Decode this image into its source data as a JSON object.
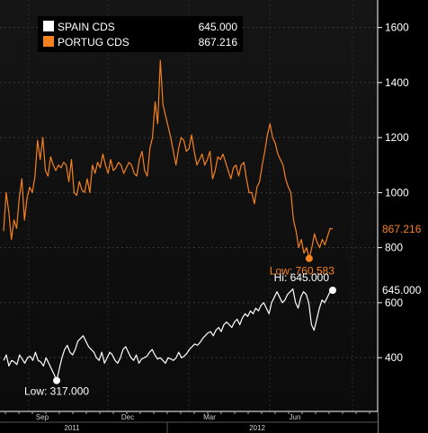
{
  "chart_data": {
    "type": "line",
    "title": "",
    "xlabel": "",
    "ylabel": "",
    "ylim": [
      250,
      1650
    ],
    "x_axis": {
      "months": [
        "Sep",
        "Dec",
        "Mar",
        "Jun"
      ],
      "years": [
        "2011",
        "2012"
      ]
    },
    "y_ticks": [
      400,
      600,
      800,
      1000,
      1200,
      1400,
      1600
    ],
    "grid": true,
    "legend": {
      "placement": "top-left",
      "entries": [
        {
          "name": "SPAIN CDS",
          "value": "645.000",
          "color": "#ffffff"
        },
        {
          "name": "PORTUG CDS",
          "value": "867.216",
          "color": "#f58220"
        }
      ]
    },
    "series": [
      {
        "name": "PORTUG CDS",
        "color": "#f58220",
        "last_value_label": "867.216",
        "values": [
          860,
          1000,
          930,
          830,
          900,
          870,
          980,
          1050,
          900,
          980,
          1020,
          1000,
          1060,
          1190,
          1120,
          1200,
          1080,
          1060,
          1130,
          1100,
          1080,
          1100,
          1090,
          1110,
          1100,
          1040,
          1120,
          1000,
          990,
          1040,
          1010,
          1000,
          1050,
          1000,
          1100,
          1070,
          1110,
          1090,
          1140,
          1100,
          1070,
          1120,
          1080,
          1090,
          1110,
          1100,
          1070,
          1090,
          1110,
          1100,
          1070,
          1060,
          1120,
          1150,
          1080,
          1060,
          1160,
          1200,
          1330,
          1250,
          1480,
          1320,
          1280,
          1240,
          1200,
          1150,
          1100,
          1160,
          1200,
          1190,
          1150,
          1160,
          1210,
          1150,
          1100,
          1120,
          1140,
          1100,
          1120,
          1150,
          1050,
          1080,
          1130,
          1120,
          1140,
          1110,
          1080,
          1050,
          1090,
          1100,
          1060,
          1100,
          1110,
          1050,
          1000,
          1000,
          960,
          1020,
          1040,
          1100,
          1150,
          1210,
          1250,
          1200,
          1180,
          1140,
          1120,
          1100,
          1050,
          1020,
          1000,
          900,
          860,
          800,
          830,
          780,
          800,
          761,
          800,
          850,
          820,
          800,
          830,
          810,
          840,
          870,
          867
        ],
        "annotations": [
          {
            "label": "Low: 760.583",
            "value": 760.583,
            "index": 117
          }
        ]
      },
      {
        "name": "SPAIN CDS",
        "color": "#ffffff",
        "last_value_label": "645.000",
        "values": [
          390,
          410,
          370,
          390,
          385,
          375,
          410,
          395,
          380,
          400,
          405,
          390,
          420,
          390,
          385,
          370,
          400,
          380,
          360,
          340,
          317,
          360,
          400,
          430,
          445,
          420,
          410,
          430,
          460,
          470,
          480,
          460,
          440,
          430,
          420,
          400,
          390,
          420,
          380,
          400,
          420,
          410,
          390,
          380,
          400,
          430,
          440,
          420,
          400,
          390,
          410,
          380,
          395,
          400,
          405,
          420,
          430,
          410,
          395,
          400,
          390,
          380,
          400,
          395,
          390,
          400,
          420,
          400,
          405,
          415,
          430,
          440,
          450,
          445,
          455,
          470,
          480,
          490,
          495,
          480,
          500,
          510,
          495,
          520,
          530,
          520,
          510,
          530,
          540,
          520,
          545,
          560,
          550,
          570,
          560,
          580,
          570,
          590,
          600,
          580,
          560,
          600,
          620,
          640,
          620,
          600,
          610,
          630,
          640,
          650,
          600,
          580,
          620,
          640,
          630,
          600,
          520,
          500,
          540,
          580,
          610,
          600,
          620,
          640,
          645
        ],
        "annotations": [
          {
            "label": "Low: 317.000",
            "value": 317,
            "index": 20
          },
          {
            "label": "Hi: 645.000",
            "value": 645,
            "index": 124
          }
        ]
      }
    ]
  }
}
